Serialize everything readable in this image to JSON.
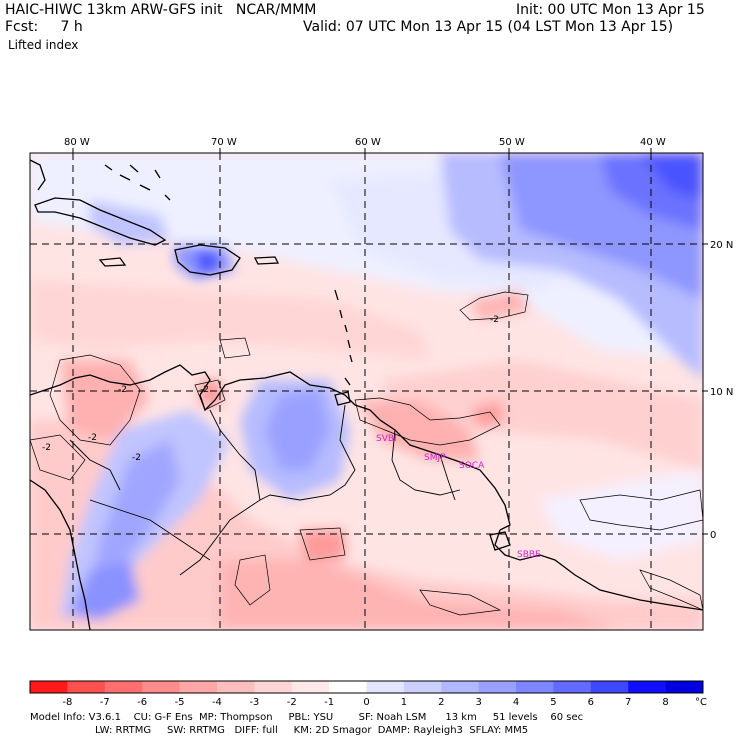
{
  "header": {
    "title": "HAIC-HIWC 13km ARW-GFS init   NCAR/MMM",
    "init": "Init: 00 UTC Mon 13 Apr 15",
    "fcst": "Fcst:     7 h",
    "valid": "Valid: 07 UTC Mon 13 Apr 15 (04 LST Mon 13 Apr 15)",
    "field": "Lifted index"
  },
  "map": {
    "lon_labels": [
      "80 W",
      "70 W",
      "60 W",
      "50 W",
      "40 W"
    ],
    "lat_labels": [
      "20 N",
      "10 N",
      "0"
    ],
    "stations": [
      "SVBI",
      "SMJP",
      "SOCA",
      "SBBE"
    ],
    "contour_labels": [
      "-2",
      "-2",
      "-2",
      "-2",
      "-2",
      "-2"
    ]
  },
  "colorbar": {
    "labels": [
      "-8",
      "-7",
      "-6",
      "-5",
      "-4",
      "-3",
      "-2",
      "-1",
      "0",
      "1",
      "2",
      "3",
      "4",
      "5",
      "6",
      "7",
      "8"
    ],
    "unit": "°C",
    "colors": [
      "#ff1a1a",
      "#ff5050",
      "#ff6f6f",
      "#ff8c8c",
      "#ffa6a6",
      "#ffbebe",
      "#ffd4d4",
      "#ffe8e8",
      "#ffffff",
      "#e4e6ff",
      "#ccd0ff",
      "#b2b8ff",
      "#9aa0ff",
      "#7e86ff",
      "#626aff",
      "#4048ff",
      "#1010ff",
      "#0000e0"
    ]
  },
  "footer": {
    "line1": "Model Info: V3.6.1    CU: G-F Ens  MP: Thompson     PBL: YSU        SF: Noah LSM      13 km     51 levels    60 sec",
    "line2": "LW: RRTMG     SW: RRTMG   DIFF: full     KM: 2D Smagor  DAMP: Rayleigh3  SFLAY: MM5"
  }
}
